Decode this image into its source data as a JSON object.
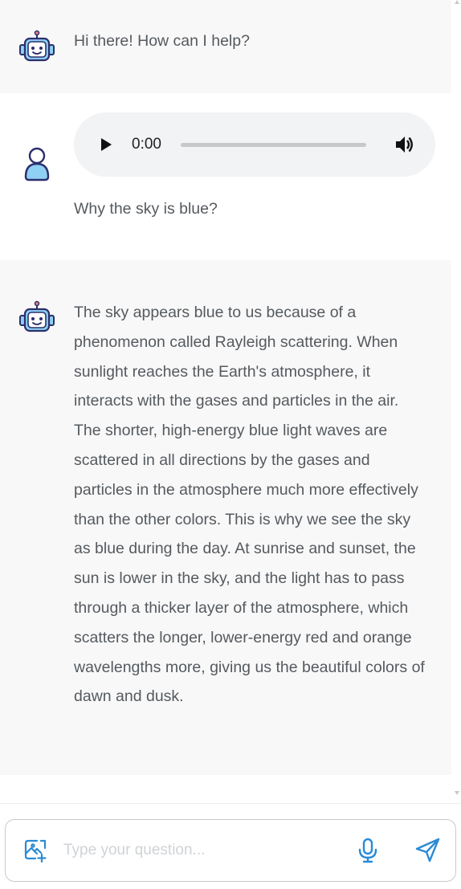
{
  "messages": [
    {
      "role": "bot",
      "text": "Hi there! How can I help?"
    },
    {
      "role": "user",
      "audio": {
        "time": "0:00",
        "progress": 0
      },
      "text": "Why the sky is blue?"
    },
    {
      "role": "bot",
      "text": "The sky appears blue to us because of a phenomenon called Rayleigh scattering. When sunlight reaches the Earth's atmosphere, it interacts with the gases and particles in the air. The shorter, high-energy blue light waves are scattered in all directions by the gases and particles in the atmosphere much more effectively than the other colors. This is why we see the sky as blue during the day. At sunrise and sunset, the sun is lower in the sky, and the light has to pass through a thicker layer of the atmosphere, which scatters the longer, lower-energy red and orange wavelengths more, giving us the beautiful colors of dawn and dusk."
    }
  ],
  "composer": {
    "placeholder": "Type your question...",
    "value": ""
  },
  "icons": {
    "bot": "robot-icon",
    "user": "user-icon",
    "play": "play-icon",
    "volume": "volume-icon",
    "image": "add-image-icon",
    "mic": "microphone-icon",
    "send": "send-icon"
  },
  "colors": {
    "accent": "#2a8bd6",
    "avatar_outline": "#2b2f6b",
    "avatar_fill": "#8fd0f5",
    "bot_bg": "#f8f8f8"
  }
}
